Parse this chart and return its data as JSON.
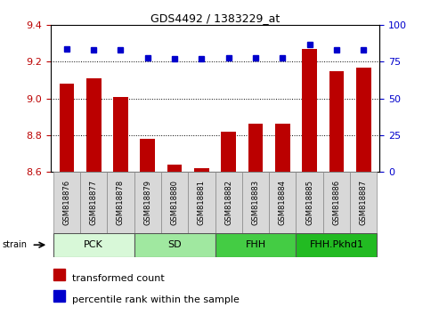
{
  "title": "GDS4492 / 1383229_at",
  "samples": [
    "GSM818876",
    "GSM818877",
    "GSM818878",
    "GSM818879",
    "GSM818880",
    "GSM818881",
    "GSM818882",
    "GSM818883",
    "GSM818884",
    "GSM818885",
    "GSM818886",
    "GSM818887"
  ],
  "bar_values": [
    9.08,
    9.11,
    9.01,
    8.78,
    8.64,
    8.62,
    8.82,
    8.86,
    8.86,
    9.27,
    9.15,
    9.17
  ],
  "percentile_values": [
    84,
    83,
    83,
    78,
    77,
    77,
    78,
    78,
    78,
    87,
    83,
    83
  ],
  "bar_color": "#bb0000",
  "percentile_color": "#0000cc",
  "ylim_left": [
    8.6,
    9.4
  ],
  "ylim_right": [
    0,
    100
  ],
  "yticks_left": [
    8.6,
    8.8,
    9.0,
    9.2,
    9.4
  ],
  "yticks_right": [
    0,
    25,
    50,
    75,
    100
  ],
  "groups": [
    {
      "label": "PCK",
      "start": 0,
      "end": 3,
      "color": "#d8f8d8"
    },
    {
      "label": "SD",
      "start": 3,
      "end": 6,
      "color": "#a0e8a0"
    },
    {
      "label": "FHH",
      "start": 6,
      "end": 9,
      "color": "#44cc44"
    },
    {
      "label": "FHH.Pkhd1",
      "start": 9,
      "end": 12,
      "color": "#22bb22"
    }
  ],
  "strain_label": "strain",
  "legend_bar": "transformed count",
  "legend_perc": "percentile rank within the sample",
  "plot_bg": "#ffffff",
  "sample_box_color": "#d8d8d8",
  "title_fontsize": 9,
  "axis_fontsize": 8,
  "sample_fontsize": 6,
  "group_fontsize": 8,
  "legend_fontsize": 8
}
